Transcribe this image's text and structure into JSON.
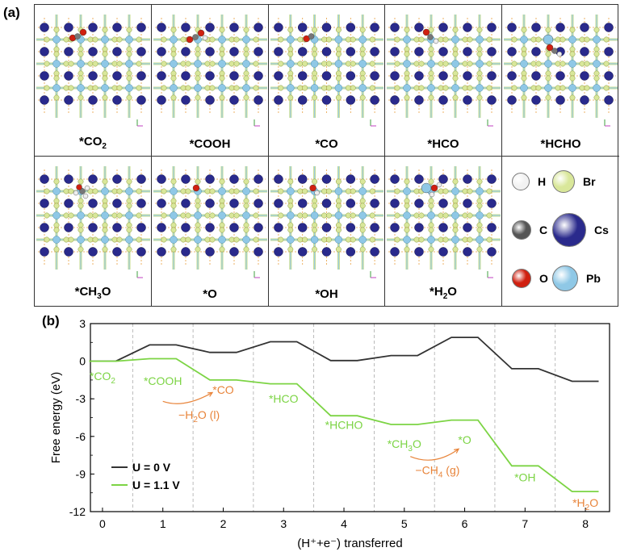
{
  "figure": {
    "panel_a_label": "(a)",
    "panel_b_label": "(b)",
    "structures": [
      {
        "id": "co2",
        "label_main": "*CO",
        "label_sub": "2",
        "label_tail": ""
      },
      {
        "id": "cooh",
        "label_main": "*COOH",
        "label_sub": "",
        "label_tail": ""
      },
      {
        "id": "co",
        "label_main": "*CO",
        "label_sub": "",
        "label_tail": ""
      },
      {
        "id": "hco",
        "label_main": "*HCO",
        "label_sub": "",
        "label_tail": ""
      },
      {
        "id": "hcho",
        "label_main": "*HCHO",
        "label_sub": "",
        "label_tail": ""
      },
      {
        "id": "ch3o",
        "label_main": "*CH",
        "label_sub": "3",
        "label_tail": "O"
      },
      {
        "id": "o",
        "label_main": "*O",
        "label_sub": "",
        "label_tail": ""
      },
      {
        "id": "oh",
        "label_main": "*OH",
        "label_sub": "",
        "label_tail": ""
      },
      {
        "id": "h2o",
        "label_main": "*H",
        "label_sub": "2",
        "label_tail": "O"
      }
    ],
    "atom_legend": [
      {
        "symbol": "H",
        "color": "#f2f2f2"
      },
      {
        "symbol": "Br",
        "color": "#d9e79a"
      },
      {
        "symbol": "C",
        "color": "#555555"
      },
      {
        "symbol": "Cs",
        "color": "#2a2a8c"
      },
      {
        "symbol": "O",
        "color": "#d02010"
      },
      {
        "symbol": "Pb",
        "color": "#8fc8e6"
      }
    ]
  },
  "chart_data": {
    "type": "line",
    "title": "",
    "xlabel": "(H⁺+e⁻) transferred",
    "ylabel": "Free energy (eV)",
    "xlim": [
      -0.2,
      8.4
    ],
    "ylim": [
      -12,
      3
    ],
    "xticks": [
      0,
      1,
      2,
      3,
      4,
      5,
      6,
      7,
      8
    ],
    "yticks": [
      3,
      0,
      -3,
      -6,
      -9,
      -12
    ],
    "step_divisions": [
      0.5,
      1.5,
      2.5,
      3.5,
      4.5,
      5.5,
      6.5,
      7.5
    ],
    "series": [
      {
        "name": "U = 0 V",
        "color": "#333333",
        "values": [
          0.0,
          1.3,
          0.7,
          1.55,
          0.05,
          0.45,
          1.9,
          -0.6,
          -1.6
        ]
      },
      {
        "name": "U = 1.1 V",
        "color": "#7cd444",
        "values": [
          0.0,
          0.2,
          -1.5,
          -1.8,
          -4.35,
          -5.05,
          -4.7,
          -8.35,
          -10.4
        ]
      }
    ],
    "legend_position": "bottom-left",
    "step_labels": [
      {
        "text": "*CO",
        "sub": "2",
        "tail": "",
        "color": "#7cd444",
        "at_x": 0,
        "at_y": -1.5
      },
      {
        "text": "*COOH",
        "sub": "",
        "tail": "",
        "color": "#7cd444",
        "at_x": 1,
        "at_y": -1.9
      },
      {
        "text": "*CO",
        "sub": "",
        "tail": "",
        "color": "#e8843a",
        "at_x": 2,
        "at_y": -2.6
      },
      {
        "text": "*HCO",
        "sub": "",
        "tail": "",
        "color": "#7cd444",
        "at_x": 3,
        "at_y": -3.3
      },
      {
        "text": "*HCHO",
        "sub": "",
        "tail": "",
        "color": "#7cd444",
        "at_x": 4,
        "at_y": -5.4
      },
      {
        "text": "*CH",
        "sub": "3",
        "tail": "O",
        "color": "#7cd444",
        "at_x": 5,
        "at_y": -6.9
      },
      {
        "text": "*O",
        "sub": "",
        "tail": "",
        "color": "#7cd444",
        "at_x": 6,
        "at_y": -6.6
      },
      {
        "text": "*OH",
        "sub": "",
        "tail": "",
        "color": "#7cd444",
        "at_x": 7,
        "at_y": -9.6
      },
      {
        "text": "*H",
        "sub": "2",
        "tail": "O",
        "color": "#e8843a",
        "at_x": 8,
        "at_y": -11.6
      }
    ],
    "annotations": [
      {
        "text_pre": "−H",
        "sub": "2",
        "text_post": "O (l)",
        "color": "#e8843a",
        "at_x": 1.6,
        "at_y": -4.6
      },
      {
        "text_pre": "−CH",
        "sub": "4",
        "text_post": " (g)",
        "color": "#e8843a",
        "at_x": 5.55,
        "at_y": -9.0
      }
    ]
  }
}
